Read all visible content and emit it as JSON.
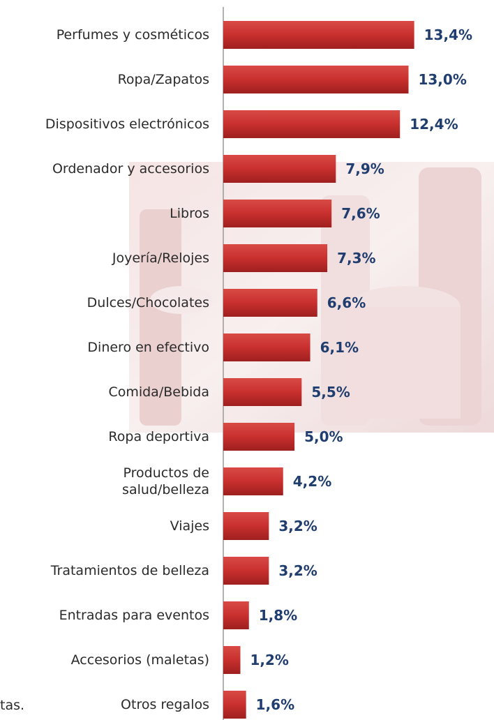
{
  "chart_data": {
    "type": "bar",
    "orientation": "horizontal",
    "categories": [
      "Perfumes y cosméticos",
      "Ropa/Zapatos",
      "Dispositivos electrónicos",
      "Ordenador y accesorios",
      "Libros",
      "Joyería/Relojes",
      "Dulces/Chocolates",
      "Dinero en efectivo",
      "Comida/Bebida",
      "Ropa deportiva",
      "Productos de salud/belleza",
      "Viajes",
      "Tratamientos de belleza",
      "Entradas para eventos",
      "Accesorios (maletas)",
      "Otros regalos"
    ],
    "values": [
      13.4,
      13.0,
      12.4,
      7.9,
      7.6,
      7.3,
      6.6,
      6.1,
      5.5,
      5.0,
      4.2,
      3.2,
      3.2,
      1.8,
      1.2,
      1.6
    ],
    "value_labels": [
      "13,4%",
      "13,0%",
      "12,4%",
      "7,9%",
      "7,6%",
      "7,3%",
      "6,6%",
      "6,1%",
      "5,5%",
      "5,0%",
      "4,2%",
      "3,2%",
      "3,2%",
      "1,8%",
      "1,2%",
      "1,6%"
    ],
    "color": "#c8302e",
    "xlim": [
      0,
      19
    ],
    "note": "tas."
  }
}
